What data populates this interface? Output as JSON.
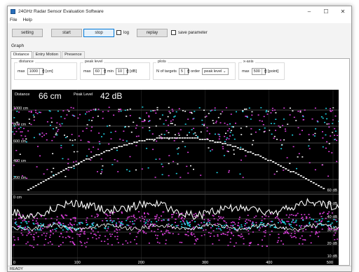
{
  "window": {
    "title": "24GHz Radar Sensor Evaluation Software",
    "controls": [
      "–",
      "☐",
      "✕"
    ]
  },
  "menu": [
    "File",
    "Help"
  ],
  "toolbar": {
    "setting": "setting",
    "start": "start",
    "stop": "stop",
    "log": "log",
    "replay": "replay",
    "save_parameter": "save parameter"
  },
  "graph_label": "Graph",
  "tabs": [
    "Distance",
    "Entry Motion",
    "Presence"
  ],
  "groups": {
    "distance": {
      "title": "distance",
      "max_label": "max",
      "max_value": "1000",
      "unit": "[cm]"
    },
    "peak_level": {
      "title": "peak level",
      "max_label": "max",
      "max_value": "60",
      "min_label": "min",
      "min_value": "10",
      "unit": "[dB]"
    },
    "plots": {
      "title": "plots",
      "targets_label": "N of targets",
      "targets_value": "5",
      "order_label": "order",
      "order_value": "peak level"
    },
    "x_axis": {
      "title": "x-axis",
      "max_label": "max",
      "max_value": "500",
      "unit": "[point]"
    }
  },
  "readout": {
    "distance_label": "Distance",
    "distance_value": "66 cm",
    "peak_label": "Peak Level",
    "peak_value": "42 dB"
  },
  "upper_labels": [
    "1000 cm",
    "800 cm",
    "600 cm",
    "400 cm",
    "200 cm"
  ],
  "lower_labels": [
    "60 dB",
    "50 dB",
    "40 dB",
    "30 dB",
    "20 dB",
    "10 dB"
  ],
  "lower_top_label": "0 cm",
  "x_ticks": [
    "0",
    "100",
    "200",
    "300",
    "400",
    "500"
  ],
  "status": "READY",
  "colors": {
    "plot_bg": "#000000",
    "trace": "#ffffff",
    "target_a": "#e040e0",
    "target_b": "#20d8e8",
    "accent": "#0078d7"
  }
}
